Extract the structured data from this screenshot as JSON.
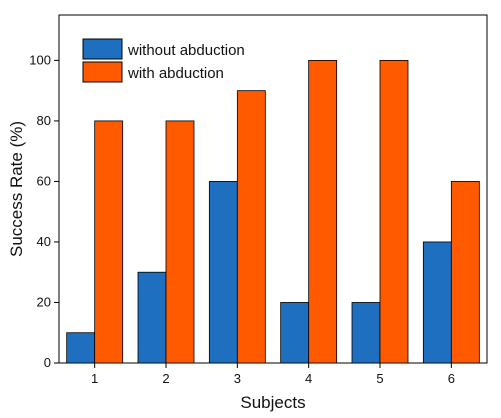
{
  "chart_data": {
    "type": "bar",
    "categories": [
      "1",
      "2",
      "3",
      "4",
      "5",
      "6"
    ],
    "series": [
      {
        "name": "without abduction",
        "values": [
          10,
          30,
          60,
          20,
          20,
          40
        ],
        "color": "#1f6fc0"
      },
      {
        "name": "with abduction",
        "values": [
          80,
          80,
          90,
          100,
          100,
          60
        ],
        "color": "#ff5a00"
      }
    ],
    "xlabel": "Subjects",
    "ylabel": "Success Rate (%)",
    "ylim": [
      0,
      115
    ],
    "yticks": [
      "0",
      "20",
      "40",
      "60",
      "80",
      "100"
    ],
    "grid": false,
    "legend_position": "top-left"
  }
}
